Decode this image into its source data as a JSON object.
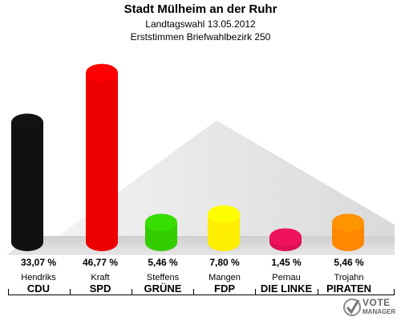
{
  "header": {
    "title": "Stadt Mülheim an der Ruhr",
    "subtitle1": "Landtagswahl 13.05.2012",
    "subtitle2": "Erststimmen Briefwahlbezirk 250"
  },
  "logo": {
    "line1": "VOTE",
    "line2": "MANAGER"
  },
  "chart_data": {
    "type": "bar",
    "categories": [
      "CDU",
      "SPD",
      "GRÜNE",
      "FDP",
      "DIE LINKE",
      "PIRATEN"
    ],
    "candidates": [
      "Hendriks",
      "Kraft",
      "Steffens",
      "Mangen",
      "Pernau",
      "Trojahn"
    ],
    "values": [
      33.07,
      46.77,
      5.46,
      7.8,
      1.45,
      5.46
    ],
    "value_labels": [
      "33,07 %",
      "46,77 %",
      "5,46 %",
      "7,80 %",
      "1,45 %",
      "5,46 %"
    ],
    "colors": [
      "#111111",
      "#ee0000",
      "#33cc00",
      "#ffee00",
      "#dd1155",
      "#ff8800"
    ],
    "ylim": [
      0,
      50
    ]
  }
}
